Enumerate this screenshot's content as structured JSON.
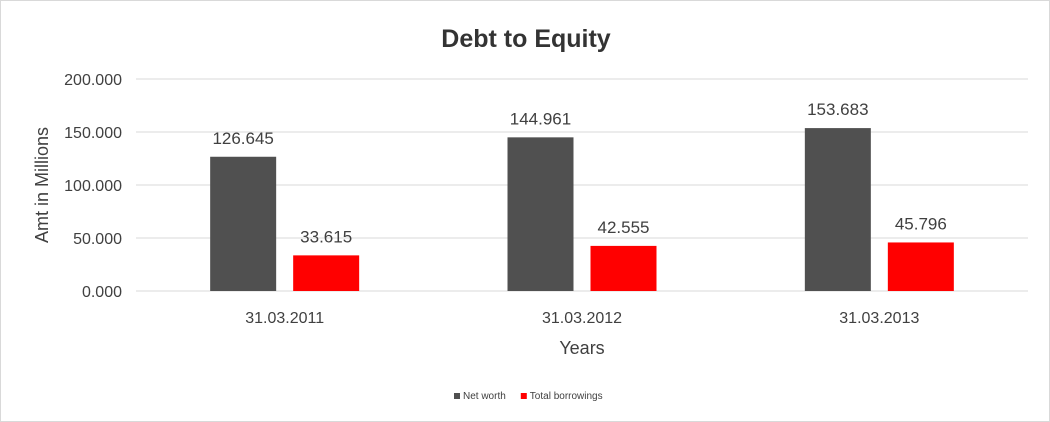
{
  "chart_data": {
    "type": "bar",
    "title": "Debt to Equity",
    "xlabel": "Years",
    "ylabel": "Amt in Millions",
    "categories": [
      "31.03.2011",
      "31.03.2012",
      "31.03.2013"
    ],
    "series": [
      {
        "name": "Net worth",
        "values": [
          126.645,
          144.961,
          153.683
        ],
        "color": "#505050"
      },
      {
        "name": "Total borrowings",
        "values": [
          33.615,
          42.555,
          45.796
        ],
        "color": "#ff0000"
      }
    ],
    "ylim": [
      0,
      200
    ],
    "yticks": [
      "0.000",
      "50.000",
      "100.000",
      "150.000",
      "200.000"
    ],
    "data_labels": [
      [
        "126.645",
        "144.961",
        "153.683"
      ],
      [
        "33.615",
        "42.555",
        "45.796"
      ]
    ],
    "grid": true,
    "legend": "bottom"
  }
}
